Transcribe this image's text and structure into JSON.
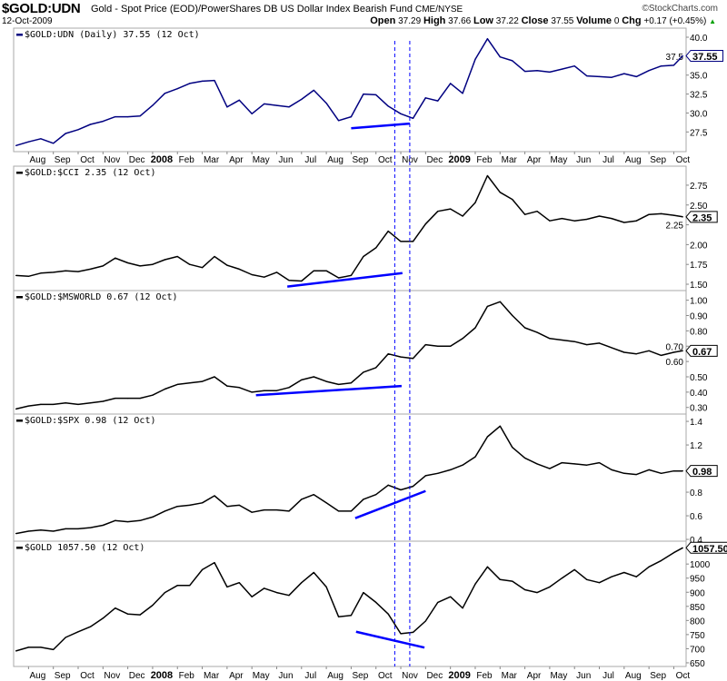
{
  "header": {
    "symbol": "$GOLD:UDN",
    "description": "Gold - Spot Price (EOD)/PowerShares DB US Dollar Index Bearish Fund",
    "exchange": "CME/NYSE",
    "copyright": "©StockCharts.com",
    "date": "12-Oct-2009",
    "open_label": "Open",
    "open": "37.29",
    "high_label": "High",
    "high": "37.66",
    "low_label": "Low",
    "low": "37.22",
    "close_label": "Close",
    "close": "37.55",
    "volume_label": "Volume",
    "volume": "0",
    "chg_label": "Chg",
    "chg": "+0.17 (+0.45%)",
    "chg_icon": "up-triangle-icon"
  },
  "chart_data": {
    "type": "line",
    "colors": {
      "ratio_line": "#000080",
      "line": "#000000",
      "annotation": "#0000ff",
      "frame": "#aaaaaa"
    },
    "grid": false,
    "dates": [
      "2007-07-16",
      "2007-08-01",
      "2007-08-16",
      "2007-09-01",
      "2007-09-16",
      "2007-10-01",
      "2007-10-16",
      "2007-11-01",
      "2007-11-16",
      "2007-12-01",
      "2007-12-16",
      "2008-01-01",
      "2008-01-16",
      "2008-02-01",
      "2008-02-16",
      "2008-03-01",
      "2008-03-16",
      "2008-04-01",
      "2008-04-16",
      "2008-05-01",
      "2008-05-16",
      "2008-06-01",
      "2008-06-16",
      "2008-07-01",
      "2008-07-16",
      "2008-08-01",
      "2008-08-16",
      "2008-09-01",
      "2008-09-16",
      "2008-10-01",
      "2008-10-16",
      "2008-11-01",
      "2008-11-16",
      "2008-12-01",
      "2008-12-16",
      "2009-01-01",
      "2009-01-16",
      "2009-02-01",
      "2009-02-16",
      "2009-03-01",
      "2009-03-16",
      "2009-04-01",
      "2009-04-16",
      "2009-05-01",
      "2009-05-16",
      "2009-06-01",
      "2009-06-16",
      "2009-07-01",
      "2009-07-16",
      "2009-08-01",
      "2009-08-16",
      "2009-09-01",
      "2009-09-16",
      "2009-10-01",
      "2009-10-12"
    ],
    "x_tick_labels": [
      {
        "label": "Aug",
        "date": "2007-08-01"
      },
      {
        "label": "Sep",
        "date": "2007-09-01"
      },
      {
        "label": "Oct",
        "date": "2007-10-01"
      },
      {
        "label": "Nov",
        "date": "2007-11-01"
      },
      {
        "label": "Dec",
        "date": "2007-12-01"
      },
      {
        "label": "2008",
        "date": "2008-01-01",
        "year": true
      },
      {
        "label": "Feb",
        "date": "2008-02-01"
      },
      {
        "label": "Mar",
        "date": "2008-03-01"
      },
      {
        "label": "Apr",
        "date": "2008-04-01"
      },
      {
        "label": "May",
        "date": "2008-05-01"
      },
      {
        "label": "Jun",
        "date": "2008-06-01"
      },
      {
        "label": "Jul",
        "date": "2008-07-01"
      },
      {
        "label": "Aug",
        "date": "2008-08-01"
      },
      {
        "label": "Sep",
        "date": "2008-09-01"
      },
      {
        "label": "Oct",
        "date": "2008-10-01"
      },
      {
        "label": "Nov",
        "date": "2008-11-01"
      },
      {
        "label": "Dec",
        "date": "2008-12-01"
      },
      {
        "label": "2009",
        "date": "2009-01-01",
        "year": true
      },
      {
        "label": "Feb",
        "date": "2009-02-01"
      },
      {
        "label": "Mar",
        "date": "2009-03-01"
      },
      {
        "label": "Apr",
        "date": "2009-04-01"
      },
      {
        "label": "May",
        "date": "2009-05-01"
      },
      {
        "label": "Jun",
        "date": "2009-06-01"
      },
      {
        "label": "Jul",
        "date": "2009-07-01"
      },
      {
        "label": "Aug",
        "date": "2009-08-01"
      },
      {
        "label": "Sep",
        "date": "2009-09-01"
      },
      {
        "label": "Oct",
        "date": "2009-10-01"
      }
    ],
    "vertical_markers": [
      "2008-10-24",
      "2008-11-12"
    ],
    "panels": [
      {
        "legend": "$GOLD:UDN (Daily) 37.55 (12 Oct)",
        "last_value": "37.55",
        "ylim": [
          24.9,
          41.2
        ],
        "y_ticks": [
          "40.0",
          "37.5",
          "35.0",
          "32.5",
          "30.0",
          "27.5"
        ],
        "values": [
          25.7,
          26.2,
          26.6,
          26.0,
          27.3,
          27.8,
          28.5,
          28.9,
          29.5,
          29.5,
          29.6,
          31.0,
          32.6,
          33.2,
          33.9,
          34.2,
          34.3,
          30.8,
          31.7,
          29.9,
          31.2,
          31.0,
          30.8,
          31.8,
          33.0,
          31.3,
          29.0,
          29.5,
          32.5,
          32.4,
          30.9,
          29.9,
          29.3,
          32.0,
          31.6,
          33.9,
          32.6,
          37.1,
          39.8,
          37.4,
          36.9,
          35.5,
          35.6,
          35.4,
          35.8,
          36.2,
          34.9,
          34.8,
          34.7,
          35.2,
          34.8,
          35.6,
          36.2,
          36.3,
          37.55
        ],
        "trendline": {
          "start": {
            "date": "2008-09-01",
            "value": 27.98
          },
          "end": {
            "date": "2008-11-12",
            "value": 28.6
          }
        }
      },
      {
        "legend": "$GOLD:$CCI 2.35 (12 Oct)",
        "last_value": "2.35",
        "ylim": [
          1.42,
          2.99
        ],
        "y_ticks": [
          "2.75",
          "2.50",
          "2.25",
          "2.00",
          "1.75",
          "1.50"
        ],
        "values": [
          1.61,
          1.6,
          1.64,
          1.65,
          1.67,
          1.66,
          1.69,
          1.73,
          1.83,
          1.77,
          1.73,
          1.75,
          1.81,
          1.85,
          1.75,
          1.71,
          1.85,
          1.74,
          1.69,
          1.62,
          1.59,
          1.65,
          1.55,
          1.54,
          1.67,
          1.67,
          1.58,
          1.61,
          1.85,
          1.96,
          2.17,
          2.04,
          2.04,
          2.26,
          2.42,
          2.45,
          2.36,
          2.53,
          2.87,
          2.66,
          2.57,
          2.38,
          2.42,
          2.3,
          2.33,
          2.3,
          2.32,
          2.36,
          2.33,
          2.28,
          2.3,
          2.38,
          2.39,
          2.37,
          2.35
        ],
        "trendline": {
          "start": {
            "date": "2008-06-14",
            "value": 1.47
          },
          "end": {
            "date": "2008-11-03",
            "value": 1.64
          }
        }
      },
      {
        "legend": "$GOLD:$MSWORLD 0.67 (12 Oct)",
        "last_value": "0.67",
        "ylim": [
          0.257,
          1.063
        ],
        "y_ticks": [
          "1.00",
          "0.90",
          "0.80",
          "0.70",
          "0.60",
          "0.50",
          "0.40",
          "0.30"
        ],
        "values": [
          0.29,
          0.31,
          0.32,
          0.32,
          0.33,
          0.32,
          0.33,
          0.34,
          0.36,
          0.36,
          0.36,
          0.38,
          0.42,
          0.45,
          0.46,
          0.47,
          0.5,
          0.44,
          0.43,
          0.4,
          0.41,
          0.41,
          0.43,
          0.48,
          0.5,
          0.47,
          0.45,
          0.46,
          0.53,
          0.56,
          0.65,
          0.63,
          0.62,
          0.71,
          0.7,
          0.7,
          0.75,
          0.82,
          0.96,
          0.99,
          0.9,
          0.82,
          0.79,
          0.75,
          0.74,
          0.73,
          0.71,
          0.72,
          0.69,
          0.66,
          0.65,
          0.67,
          0.64,
          0.66,
          0.67
        ],
        "trendline": {
          "start": {
            "date": "2008-05-06",
            "value": 0.38
          },
          "end": {
            "date": "2008-11-02",
            "value": 0.44
          }
        }
      },
      {
        "legend": "$GOLD:$SPX 0.98 (12 Oct)",
        "last_value": "0.98",
        "ylim": [
          0.385,
          1.462
        ],
        "y_ticks": [
          "1.4",
          "1.2",
          "0.8",
          "0.6",
          "0.4"
        ],
        "values": [
          0.45,
          0.47,
          0.48,
          0.47,
          0.49,
          0.49,
          0.5,
          0.52,
          0.56,
          0.55,
          0.56,
          0.59,
          0.64,
          0.68,
          0.69,
          0.71,
          0.77,
          0.68,
          0.69,
          0.63,
          0.65,
          0.65,
          0.64,
          0.74,
          0.78,
          0.71,
          0.64,
          0.64,
          0.74,
          0.78,
          0.86,
          0.82,
          0.85,
          0.94,
          0.96,
          0.99,
          1.03,
          1.1,
          1.27,
          1.36,
          1.18,
          1.09,
          1.04,
          1.0,
          1.05,
          1.04,
          1.03,
          1.05,
          0.99,
          0.96,
          0.95,
          0.99,
          0.96,
          0.98,
          0.98
        ],
        "trendline": {
          "start": {
            "date": "2008-09-06",
            "value": 0.58
          },
          "end": {
            "date": "2008-12-01",
            "value": 0.81
          }
        }
      },
      {
        "legend": "$GOLD 1057.50 (12 Oct)",
        "last_value": "1057.50",
        "ylim": [
          637,
          1081
        ],
        "y_ticks": [
          "1000",
          "950",
          "900",
          "850",
          "800",
          "750",
          "700",
          "650"
        ],
        "values": [
          692,
          705,
          705,
          697,
          740,
          760,
          778,
          808,
          844,
          823,
          820,
          854,
          899,
          924,
          924,
          980,
          1005,
          919,
          934,
          884,
          914,
          899,
          889,
          934,
          970,
          919,
          813,
          818,
          899,
          864,
          823,
          753,
          758,
          798,
          864,
          884,
          844,
          929,
          990,
          945,
          939,
          909,
          899,
          919,
          950,
          980,
          945,
          934,
          955,
          970,
          955,
          990,
          1012,
          1040,
          1057.5
        ],
        "trendline": {
          "start": {
            "date": "2008-09-07",
            "value": 760
          },
          "end": {
            "date": "2008-11-30",
            "value": 704
          }
        }
      }
    ]
  }
}
